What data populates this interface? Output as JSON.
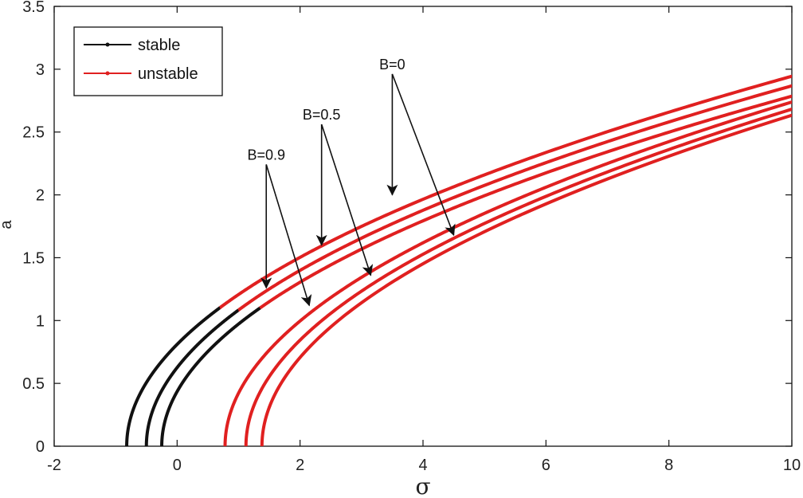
{
  "chart_data": {
    "type": "line",
    "title": "",
    "xlabel": "σ",
    "ylabel": "a",
    "xlim": [
      -2,
      10
    ],
    "ylim": [
      0,
      3.5
    ],
    "xticks": [
      -2,
      0,
      2,
      4,
      6,
      8,
      10
    ],
    "xtick_labels": [
      "-2",
      "0",
      "2",
      "4",
      "6",
      "8",
      "10"
    ],
    "yticks": [
      0,
      0.5,
      1,
      1.5,
      2,
      2.5,
      3,
      3.5
    ],
    "ytick_labels": [
      "0",
      "0.5",
      "1",
      "1.5",
      "2",
      "2.5",
      "3",
      "3.5"
    ],
    "grid": false,
    "legend": {
      "position": "top-left",
      "entries": [
        {
          "label": "stable",
          "color": "#111111"
        },
        {
          "label": "unstable",
          "color": "#e02020"
        }
      ]
    },
    "colors": {
      "stable": "#111111",
      "unstable": "#e02020"
    },
    "branches": [
      {
        "group": "B=0",
        "sigma0": -0.82,
        "k": 0.895,
        "stable_until": 0.7
      },
      {
        "group": "B=0.5",
        "sigma0": -0.5,
        "k": 0.885,
        "stable_until": 1.0
      },
      {
        "group": "B=0.9",
        "sigma0": -0.25,
        "k": 0.87,
        "stable_until": 1.35
      },
      {
        "group": "B=0.9",
        "sigma0": 0.78,
        "k": 0.902,
        "stable_until": null
      },
      {
        "group": "B=0.5",
        "sigma0": 1.12,
        "k": 0.9,
        "stable_until": null
      },
      {
        "group": "B=0",
        "sigma0": 1.38,
        "k": 0.897,
        "stable_until": null
      }
    ],
    "annotations": [
      {
        "text": "B=0",
        "label_at": [
          3.5,
          3.0
        ],
        "arrow_tips": [
          [
            3.5,
            2.0
          ],
          [
            4.5,
            1.68
          ]
        ]
      },
      {
        "text": "B=0.5",
        "label_at": [
          2.35,
          2.6
        ],
        "arrow_tips": [
          [
            2.35,
            1.6
          ],
          [
            3.15,
            1.36
          ]
        ]
      },
      {
        "text": "B=0.9",
        "label_at": [
          1.45,
          2.28
        ],
        "arrow_tips": [
          [
            1.45,
            1.26
          ],
          [
            2.15,
            1.12
          ]
        ]
      }
    ]
  }
}
